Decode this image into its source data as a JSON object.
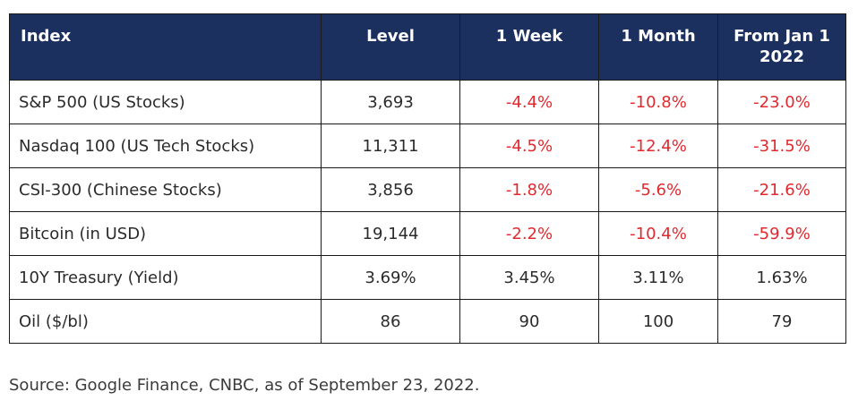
{
  "table": {
    "headers": {
      "index": "Index",
      "level": "Level",
      "week": "1 Week",
      "month": "1 Month",
      "ytd_line1": "From Jan 1",
      "ytd_line2": "2022"
    },
    "rows": [
      {
        "name": "S&P 500 (US Stocks)",
        "level": "3,693",
        "week": "-4.4%",
        "month": "-10.8%",
        "ytd": "-23.0%"
      },
      {
        "name": "Nasdaq 100 (US Tech Stocks)",
        "level": "11,311",
        "week": "-4.5%",
        "month": "-12.4%",
        "ytd": "-31.5%"
      },
      {
        "name": "CSI-300 (Chinese Stocks)",
        "level": "3,856",
        "week": "-1.8%",
        "month": "-5.6%",
        "ytd": "-21.6%"
      },
      {
        "name": "Bitcoin (in USD)",
        "level": "19,144",
        "week": "-2.2%",
        "month": "-10.4%",
        "ytd": "-59.9%"
      },
      {
        "name": "10Y Treasury (Yield)",
        "level": "3.69%",
        "week": "3.45%",
        "month": "3.11%",
        "ytd": "1.63%"
      },
      {
        "name": "Oil ($/bl)",
        "level": "86",
        "week": "90",
        "month": "100",
        "ytd": "79"
      }
    ]
  },
  "source_note": "Source: Google Finance, CNBC, as of September 23, 2022.",
  "colors": {
    "header_bg": "#1c3060",
    "header_text": "#ffffff",
    "negative": "#e1292f",
    "body_text": "#2b2b2b"
  }
}
